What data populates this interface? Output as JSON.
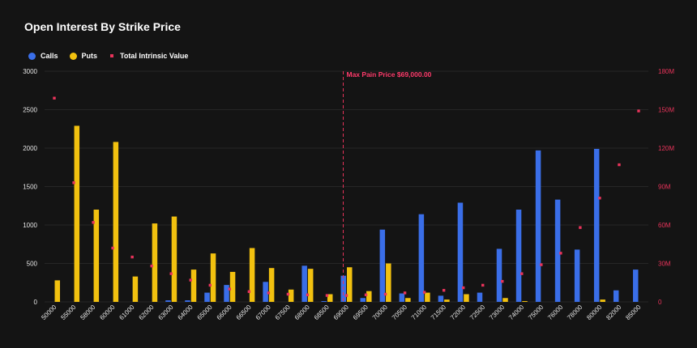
{
  "title": "Open Interest By Strike Price",
  "legend": {
    "calls": "Calls",
    "puts": "Puts",
    "intrinsic": "Total Intrinsic Value"
  },
  "colors": {
    "calls": "#3a6ee8",
    "puts": "#f2c10f",
    "intrinsic": "#e8335a",
    "grid": "#262626",
    "annotation": "#ff3b6b"
  },
  "chart_data": {
    "type": "bar",
    "title": "Open Interest By Strike Price",
    "categories": [
      "50000",
      "55000",
      "58000",
      "60000",
      "61000",
      "62000",
      "63000",
      "64000",
      "65000",
      "66000",
      "66500",
      "67000",
      "67500",
      "68000",
      "68500",
      "69000",
      "69500",
      "70000",
      "70500",
      "71000",
      "71500",
      "72000",
      "72500",
      "73000",
      "74000",
      "75000",
      "76000",
      "78000",
      "80000",
      "82000",
      "85000"
    ],
    "series": [
      {
        "name": "Calls",
        "axis": "left",
        "values": [
          0,
          0,
          0,
          0,
          0,
          0,
          20,
          20,
          120,
          220,
          0,
          260,
          0,
          470,
          10,
          340,
          50,
          940,
          110,
          1140,
          80,
          1290,
          120,
          690,
          1200,
          1970,
          1330,
          680,
          1990,
          150,
          420
        ]
      },
      {
        "name": "Puts",
        "axis": "left",
        "values": [
          280,
          2290,
          1200,
          2080,
          330,
          1020,
          1110,
          420,
          630,
          390,
          700,
          440,
          160,
          430,
          100,
          450,
          140,
          500,
          50,
          120,
          30,
          100,
          0,
          50,
          10,
          0,
          0,
          0,
          30,
          0,
          0
        ]
      },
      {
        "name": "Total Intrinsic Value",
        "axis": "right",
        "type": "scatter",
        "values": [
          159000000,
          93000000,
          62000000,
          42000000,
          35000000,
          28000000,
          22000000,
          17000000,
          13000000,
          10000000,
          8000000,
          7000000,
          6000000,
          5500000,
          5000000,
          5000000,
          5500000,
          6000000,
          7000000,
          7500000,
          9000000,
          11000000,
          13000000,
          16000000,
          22000000,
          29000000,
          38000000,
          58000000,
          81000000,
          107000000,
          149000000
        ]
      }
    ],
    "yleft": {
      "ylim": [
        0,
        3000
      ],
      "ticks": [
        0,
        500,
        1000,
        1500,
        2000,
        2500,
        3000
      ]
    },
    "yright": {
      "ylim": [
        0,
        180000000
      ],
      "ticks": [
        0,
        30000000,
        60000000,
        90000000,
        120000000,
        150000000,
        180000000
      ],
      "tick_labels": [
        "0",
        "30M",
        "60M",
        "90M",
        "120M",
        "150M",
        "180M"
      ]
    },
    "annotation": {
      "label": "Max Pain Price $69,000.00",
      "category": "69000"
    },
    "legend_position": "top-left"
  }
}
